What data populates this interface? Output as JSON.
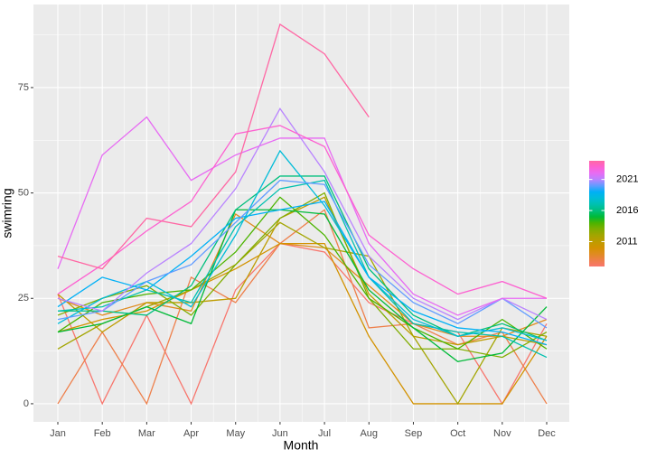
{
  "chart_data": {
    "type": "line",
    "x_label": "Month",
    "y_label": "swimring",
    "categories": [
      "Jan",
      "Feb",
      "Mar",
      "Apr",
      "May",
      "Jun",
      "Jul",
      "Aug",
      "Sep",
      "Oct",
      "Nov",
      "Dec"
    ],
    "ylim": [
      -4.3,
      94.7
    ],
    "yticks": [
      0,
      25,
      50,
      75
    ],
    "grid": true,
    "legend": {
      "position": "right",
      "lim": [
        2007,
        2024
      ],
      "ticks": [
        2011,
        2016,
        2021
      ]
    },
    "series": [
      {
        "color": "#F8766D",
        "values": [
          26,
          0,
          21,
          0,
          27,
          38,
          36,
          24,
          19,
          17,
          0,
          19
        ]
      },
      {
        "color": "#EE7F4A",
        "values": [
          0,
          17,
          0,
          30,
          24,
          38,
          46,
          18,
          19,
          14,
          17,
          0
        ]
      },
      {
        "color": "#E08B20",
        "values": [
          25,
          21,
          24,
          22,
          45,
          38,
          37,
          28,
          19,
          16,
          16,
          20
        ]
      },
      {
        "color": "#D39200",
        "values": [
          17,
          20,
          22,
          27,
          32,
          38,
          38,
          16,
          0,
          0,
          0,
          16
        ]
      },
      {
        "color": "#BE9C00",
        "values": [
          26,
          17,
          24,
          24,
          25,
          44,
          49,
          26,
          16,
          14,
          16,
          14
        ]
      },
      {
        "color": "#A3A500",
        "values": [
          13,
          19,
          23,
          27,
          33,
          43,
          37,
          35,
          16,
          0,
          18,
          16
        ]
      },
      {
        "color": "#80AD00",
        "values": [
          21,
          25,
          28,
          21,
          33,
          44,
          50,
          25,
          13,
          13,
          11,
          17
        ]
      },
      {
        "color": "#4CB400",
        "values": [
          17,
          24,
          26,
          27,
          36,
          49,
          40,
          25,
          18,
          13,
          20,
          13
        ]
      },
      {
        "color": "#00BA38",
        "values": [
          17,
          19,
          23,
          19,
          46,
          46,
          45,
          27,
          18,
          10,
          12,
          23
        ]
      },
      {
        "color": "#00BF7D",
        "values": [
          22,
          22,
          21,
          28,
          46,
          54,
          54,
          32,
          21,
          16,
          19,
          15
        ]
      },
      {
        "color": "#00C0AF",
        "values": [
          22,
          23,
          27,
          24,
          42,
          51,
          53,
          30,
          19,
          17,
          16,
          11
        ]
      },
      {
        "color": "#00BCD8",
        "values": [
          19,
          25,
          29,
          23,
          40,
          60,
          47,
          30,
          20,
          16,
          18,
          15
        ]
      },
      {
        "color": "#00B0F6",
        "values": [
          23,
          30,
          27,
          35,
          44,
          46,
          48,
          30,
          22,
          18,
          17,
          14
        ]
      },
      {
        "color": "#619CFF",
        "values": [
          20,
          22,
          29,
          33,
          43,
          53,
          52,
          33,
          24,
          19,
          25,
          18
        ]
      },
      {
        "color": "#B983FF",
        "values": [
          25,
          22,
          31,
          38,
          51,
          70,
          55,
          35,
          25,
          20,
          25,
          20
        ]
      },
      {
        "color": "#E76BF3",
        "values": [
          32,
          59,
          68,
          53,
          59,
          63,
          63,
          38,
          26,
          21,
          25,
          25
        ]
      },
      {
        "color": "#FD61D1",
        "values": [
          26,
          33,
          41,
          48,
          64,
          66,
          61,
          40,
          32,
          26,
          29,
          25
        ]
      },
      {
        "color": "#FF67A4",
        "values": [
          35,
          32,
          44,
          42,
          55,
          90,
          83,
          68,
          null,
          null,
          null,
          null
        ]
      }
    ]
  }
}
